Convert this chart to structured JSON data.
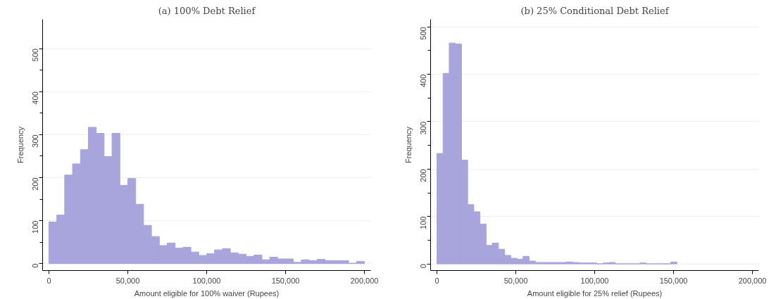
{
  "chart_data": [
    {
      "type": "histogram",
      "title": "(a) 100% Debt Relief",
      "xlabel": "Amount eligible for 100% waiver (Rupees)",
      "ylabel": "Frequency",
      "color": "#a8a4dc",
      "bins": [
        0,
        5000,
        10000,
        15000,
        20000,
        25000,
        30000,
        35000,
        40000,
        45000,
        50000,
        55000,
        60000,
        65000,
        70000,
        75000,
        80000,
        85000,
        90000,
        95000,
        100000,
        105000,
        110000,
        115000,
        120000,
        125000,
        130000,
        135000,
        140000,
        145000,
        150000,
        155000,
        160000,
        165000,
        170000,
        175000,
        180000,
        185000,
        190000,
        195000,
        200000
      ],
      "values": [
        97,
        113,
        206,
        232,
        265,
        317,
        303,
        249,
        303,
        182,
        198,
        138,
        89,
        63,
        42,
        48,
        36,
        38,
        27,
        19,
        23,
        32,
        35,
        25,
        22,
        17,
        20,
        9,
        15,
        11,
        11,
        3,
        9,
        7,
        10,
        7,
        7,
        7,
        1,
        5
      ],
      "xlim": [
        -4000,
        204000
      ],
      "ylim": [
        -16,
        568
      ],
      "xticks": [
        0,
        {
          "value": 50000,
          "label": "50,000"
        },
        {
          "value": 100000,
          "label": "100,000"
        },
        {
          "value": 150000,
          "label": "150,000"
        },
        {
          "value": 200000,
          "label": "200,000"
        }
      ],
      "yticks": [
        0,
        100,
        200,
        300,
        400,
        500
      ],
      "grid": "y"
    },
    {
      "type": "histogram",
      "title": "(b) 25% Conditional Debt Relief",
      "xlabel": "Amount eligible for 25% relief (Rupees)",
      "ylabel": "Frequency",
      "color": "#a8a4dc",
      "bins": [
        0,
        3900,
        7800,
        11700,
        15600,
        19500,
        23400,
        27300,
        31200,
        35100,
        39000,
        42900,
        46800,
        50700,
        54600,
        58500,
        62400,
        66300,
        70200,
        74100,
        78000,
        81900,
        85800,
        89700,
        93600,
        97500,
        101400,
        105300,
        109200,
        113100,
        117000,
        120900,
        124800,
        128700,
        132600,
        136500,
        140400,
        144300,
        148200,
        152100
      ],
      "values": [
        233,
        402,
        466,
        464,
        219,
        125,
        110,
        84,
        39,
        44,
        31,
        18,
        12,
        10,
        16,
        6,
        3,
        3,
        3,
        3,
        3,
        4,
        3,
        2,
        2,
        2,
        0,
        2,
        3,
        0,
        0,
        0,
        0,
        2,
        0,
        0,
        0,
        0,
        4
      ],
      "xlim": [
        -4000,
        204000
      ],
      "ylim": [
        -14,
        516
      ],
      "xticks": [
        0,
        {
          "value": 50000,
          "label": "50,000"
        },
        {
          "value": 100000,
          "label": "100,000"
        },
        {
          "value": 150000,
          "label": "150,000"
        },
        {
          "value": 200000,
          "label": "200,000"
        }
      ],
      "yticks": [
        0,
        100,
        200,
        300,
        400,
        500
      ],
      "grid": "y"
    }
  ]
}
